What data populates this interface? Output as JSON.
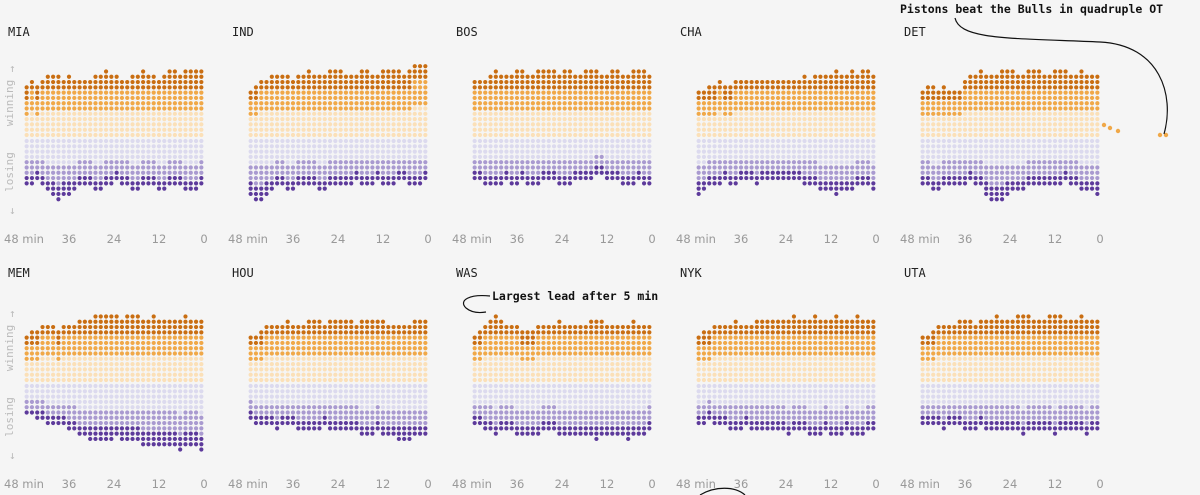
{
  "chart_data": {
    "type": "scatter",
    "x_ticks": [
      "48 min",
      "36",
      "24",
      "12",
      "0"
    ],
    "y_label_winning": "winning",
    "y_label_losing": "losing",
    "arrow_up": "↑",
    "arrow_down": "↓",
    "colors": {
      "win_light": "#fbe0b8",
      "win_mid": "#f0a848",
      "win_dark": "#c96e12",
      "lose_light": "#dcdaee",
      "lose_mid": "#a99ad0",
      "lose_dark": "#5d3a9b",
      "axis_text": "#999999",
      "background": "#f5f5f5"
    },
    "teams": [
      {
        "name": "MIA",
        "win": [
          65,
          70,
          68,
          74,
          80,
          82,
          78,
          75,
          80,
          76,
          72,
          70,
          75,
          78,
          82,
          84,
          80,
          78,
          75,
          76,
          78,
          82,
          84,
          80,
          78,
          76,
          80,
          84,
          86,
          82,
          85,
          88,
          86,
          84
        ],
        "lose": [
          60,
          58,
          56,
          62,
          68,
          74,
          78,
          72,
          70,
          66,
          62,
          58,
          60,
          64,
          66,
          62,
          58,
          56,
          60,
          62,
          64,
          66,
          60,
          58,
          62,
          66,
          64,
          60,
          58,
          62,
          66,
          68,
          64,
          60
        ]
      },
      {
        "name": "IND",
        "win": [
          62,
          64,
          70,
          72,
          78,
          80,
          82,
          78,
          76,
          80,
          82,
          84,
          80,
          78,
          82,
          86,
          88,
          84,
          80,
          78,
          80,
          84,
          86,
          82,
          80,
          84,
          86,
          88,
          84,
          80,
          84,
          90,
          94,
          92
        ],
        "lose": [
          74,
          82,
          78,
          72,
          66,
          62,
          60,
          64,
          66,
          62,
          58,
          60,
          62,
          66,
          64,
          60,
          58,
          62,
          60,
          58,
          56,
          60,
          62,
          58,
          56,
          60,
          62,
          58,
          56,
          54,
          58,
          60,
          58,
          56
        ]
      },
      {
        "name": "BOS",
        "win": [
          70,
          72,
          76,
          82,
          84,
          80,
          78,
          82,
          84,
          86,
          82,
          80,
          84,
          86,
          88,
          84,
          82,
          84,
          86,
          82,
          80,
          84,
          86,
          84,
          82,
          80,
          84,
          86,
          82,
          80,
          84,
          86,
          84,
          82
        ],
        "lose": [
          54,
          56,
          58,
          62,
          60,
          58,
          56,
          60,
          58,
          56,
          58,
          60,
          58,
          56,
          54,
          56,
          58,
          60,
          58,
          56,
          54,
          52,
          50,
          48,
          46,
          50,
          52,
          56,
          58,
          60,
          58,
          56,
          58,
          60
        ]
      },
      {
        "name": "CHA",
        "win": [
          60,
          62,
          64,
          66,
          70,
          68,
          66,
          70,
          72,
          76,
          74,
          72,
          70,
          74,
          72,
          70,
          74,
          72,
          76,
          74,
          78,
          76,
          80,
          78,
          82,
          80,
          84,
          82,
          80,
          84,
          82,
          86,
          84,
          82
        ],
        "lose": [
          70,
          66,
          62,
          60,
          58,
          56,
          60,
          58,
          56,
          54,
          56,
          58,
          56,
          54,
          52,
          56,
          54,
          52,
          54,
          56,
          58,
          60,
          62,
          64,
          66,
          68,
          70,
          68,
          66,
          64,
          62,
          60,
          62,
          64
        ]
      },
      {
        "name": "DET",
        "win": [
          62,
          64,
          66,
          62,
          64,
          60,
          58,
          60,
          74,
          78,
          82,
          84,
          80,
          78,
          82,
          84,
          86,
          84,
          80,
          82,
          84,
          86,
          84,
          82,
          80,
          84,
          86,
          84,
          82,
          80,
          84,
          82,
          80,
          78
        ],
        "lose": [
          58,
          62,
          66,
          64,
          62,
          58,
          60,
          62,
          58,
          56,
          58,
          60,
          70,
          78,
          82,
          78,
          72,
          68,
          66,
          64,
          62,
          60,
          58,
          60,
          62,
          60,
          58,
          56,
          60,
          62,
          64,
          66,
          68,
          70
        ]
      },
      {
        "name": "MEM",
        "win": [
          62,
          66,
          68,
          70,
          72,
          70,
          68,
          72,
          74,
          76,
          78,
          80,
          82,
          84,
          86,
          88,
          86,
          84,
          82,
          86,
          88,
          84,
          80,
          82,
          84,
          82,
          80,
          78,
          80,
          82,
          84,
          82,
          80,
          82
        ],
        "lose": [
          38,
          42,
          46,
          48,
          50,
          52,
          54,
          56,
          58,
          62,
          66,
          68,
          70,
          72,
          74,
          72,
          70,
          68,
          70,
          72,
          74,
          76,
          78,
          80,
          82,
          80,
          78,
          80,
          82,
          84,
          82,
          80,
          82,
          84
        ]
      },
      {
        "name": "HOU",
        "win": [
          58,
          60,
          64,
          70,
          72,
          74,
          76,
          78,
          76,
          74,
          76,
          78,
          80,
          78,
          76,
          78,
          80,
          82,
          80,
          78,
          76,
          78,
          80,
          82,
          80,
          78,
          76,
          74,
          72,
          74,
          76,
          78,
          80,
          78
        ],
        "lose": [
          46,
          50,
          52,
          54,
          56,
          58,
          56,
          54,
          56,
          58,
          60,
          62,
          60,
          58,
          56,
          58,
          60,
          62,
          60,
          58,
          62,
          64,
          66,
          64,
          62,
          64,
          66,
          68,
          70,
          72,
          70,
          68,
          66,
          64
        ]
      },
      {
        "name": "WAS",
        "win": [
          62,
          64,
          70,
          82,
          84,
          80,
          74,
          72,
          70,
          68,
          66,
          68,
          70,
          72,
          74,
          76,
          78,
          76,
          74,
          72,
          74,
          76,
          78,
          80,
          78,
          76,
          74,
          72,
          74,
          76,
          78,
          76,
          74,
          72
        ],
        "lose": [
          52,
          54,
          58,
          62,
          64,
          62,
          60,
          62,
          64,
          66,
          68,
          66,
          64,
          62,
          60,
          62,
          64,
          66,
          68,
          66,
          64,
          66,
          68,
          70,
          68,
          66,
          64,
          66,
          68,
          70,
          68,
          66,
          64,
          62
        ]
      },
      {
        "name": "NYK",
        "win": [
          62,
          64,
          66,
          70,
          72,
          74,
          76,
          78,
          76,
          74,
          76,
          78,
          80,
          82,
          80,
          78,
          80,
          82,
          84,
          82,
          80,
          82,
          84,
          82,
          80,
          82,
          84,
          82,
          80,
          82,
          84,
          82,
          80,
          78
        ],
        "lose": [
          52,
          50,
          48,
          52,
          54,
          56,
          58,
          60,
          58,
          56,
          58,
          60,
          62,
          60,
          58,
          60,
          62,
          64,
          62,
          60,
          62,
          64,
          66,
          64,
          62,
          64,
          66,
          64,
          62,
          64,
          66,
          64,
          62,
          60
        ]
      },
      {
        "name": "UTA",
        "win": [
          58,
          60,
          64,
          70,
          72,
          74,
          76,
          78,
          80,
          78,
          76,
          78,
          80,
          82,
          84,
          82,
          80,
          82,
          84,
          86,
          84,
          82,
          80,
          82,
          84,
          86,
          84,
          82,
          80,
          82,
          84,
          82,
          80,
          78
        ],
        "lose": [
          56,
          54,
          52,
          56,
          58,
          56,
          54,
          56,
          58,
          60,
          58,
          56,
          58,
          60,
          62,
          60,
          58,
          60,
          62,
          64,
          62,
          60,
          58,
          60,
          62,
          64,
          62,
          60,
          58,
          60,
          62,
          64,
          62,
          60
        ]
      }
    ],
    "annotations": [
      {
        "text": "Pistons beat the Bulls in quadruple OT",
        "team": "DET"
      },
      {
        "text": "Largest lead after 5 min",
        "team": "WAS"
      }
    ]
  }
}
